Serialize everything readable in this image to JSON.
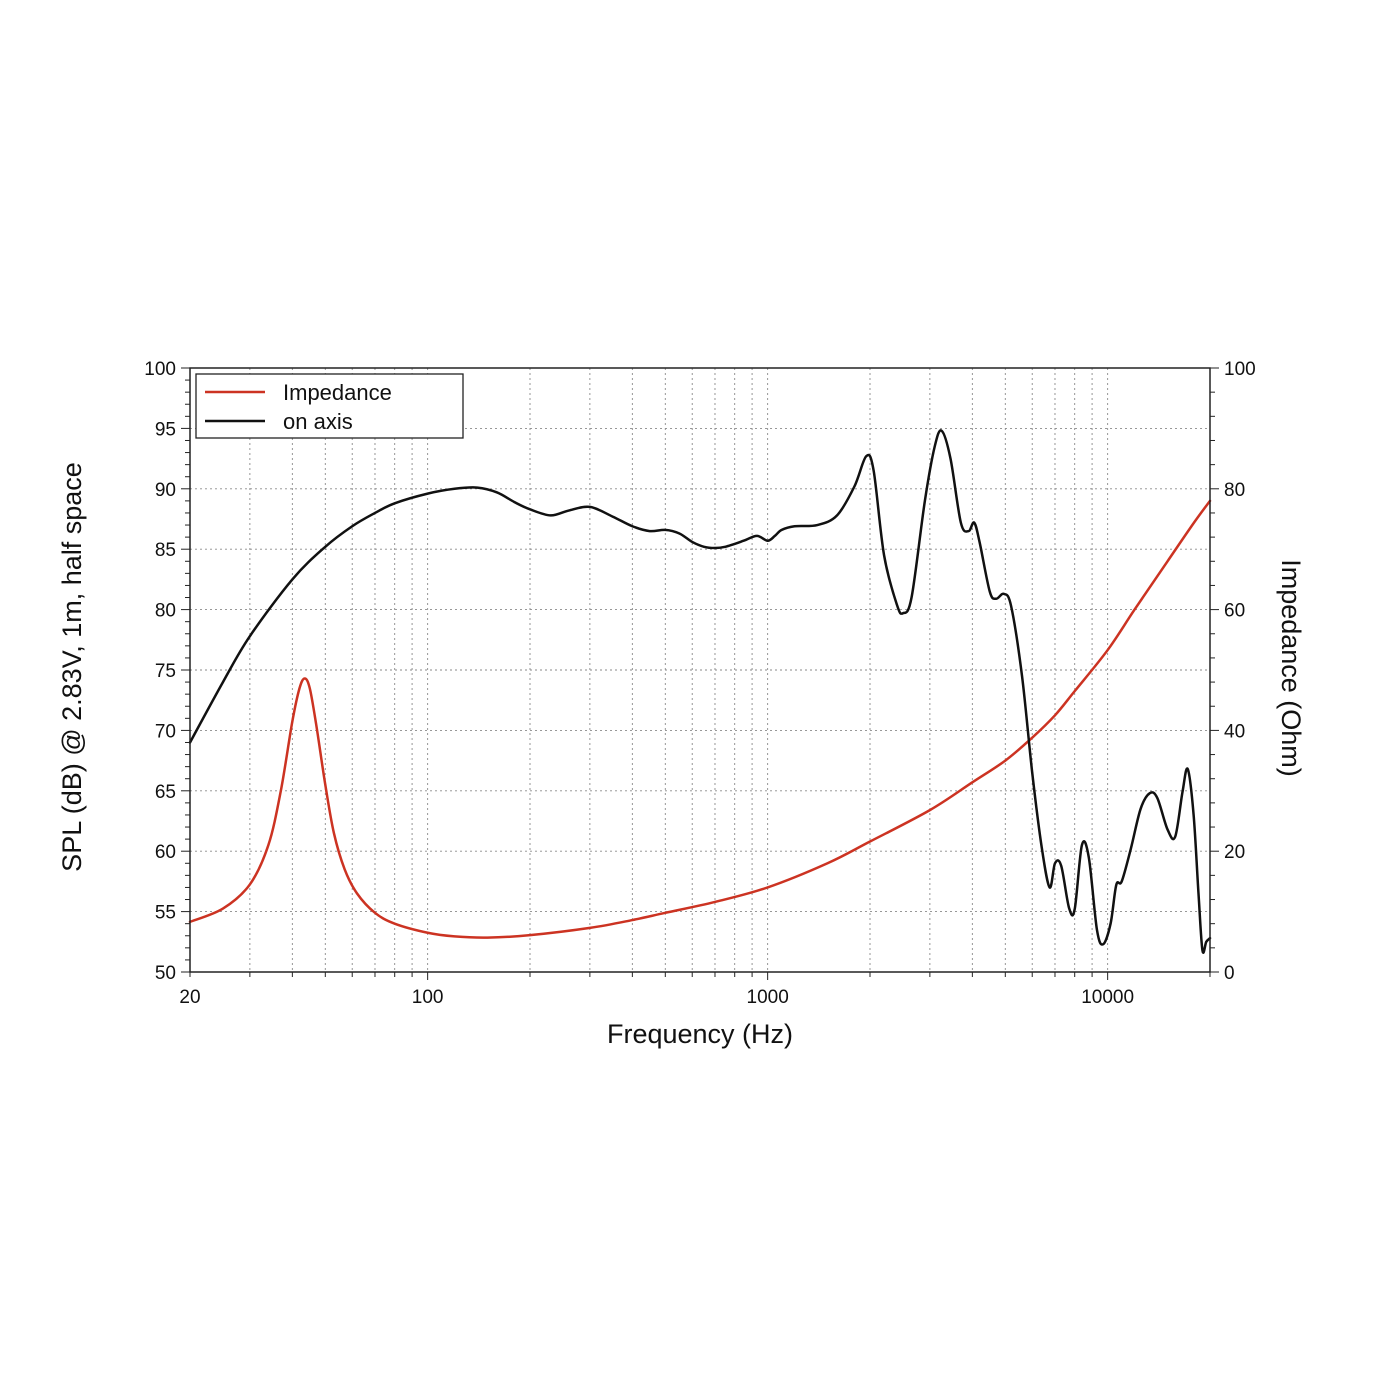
{
  "chart_data": {
    "type": "line",
    "xlabel": "Frequency (Hz)",
    "ylabel": "SPL (dB) @ 2.83V, 1m, half space",
    "y2label": "Impedance (Ohm)",
    "x_scale": "log",
    "xlim": [
      20,
      20000
    ],
    "ylim": [
      50,
      100
    ],
    "y2lim": [
      0,
      100
    ],
    "grid": true,
    "legend_position": "top-left",
    "x_ticks": [
      {
        "value": 20,
        "label": "20"
      },
      {
        "value": 100,
        "label": "100"
      },
      {
        "value": 1000,
        "label": "1000"
      },
      {
        "value": 10000,
        "label": "10000"
      }
    ],
    "y_ticks": [
      {
        "value": 100,
        "label": "100"
      },
      {
        "value": 95,
        "label": "95"
      },
      {
        "value": 90,
        "label": "90"
      },
      {
        "value": 85,
        "label": "85"
      },
      {
        "value": 80,
        "label": "80"
      },
      {
        "value": 75,
        "label": "75"
      },
      {
        "value": 70,
        "label": "70"
      },
      {
        "value": 65,
        "label": "65"
      },
      {
        "value": 60,
        "label": "60"
      },
      {
        "value": 55,
        "label": "55"
      },
      {
        "value": 50,
        "label": "50"
      }
    ],
    "y2_ticks": [
      {
        "value": 100,
        "label": "100"
      },
      {
        "value": 80,
        "label": "80"
      },
      {
        "value": 60,
        "label": "60"
      },
      {
        "value": 40,
        "label": "40"
      },
      {
        "value": 20,
        "label": "20"
      },
      {
        "value": 0,
        "label": "0"
      }
    ],
    "series": [
      {
        "name": "Impedance",
        "axis": "right",
        "color": "#cc3322",
        "points": [
          [
            20,
            8.3
          ],
          [
            25,
            10.5
          ],
          [
            30,
            14.5
          ],
          [
            34,
            21
          ],
          [
            37,
            30
          ],
          [
            40,
            41.5
          ],
          [
            42,
            47
          ],
          [
            43.5,
            48.6
          ],
          [
            45,
            47
          ],
          [
            47,
            41
          ],
          [
            50,
            31
          ],
          [
            53,
            23
          ],
          [
            57,
            17
          ],
          [
            62,
            13
          ],
          [
            70,
            9.8
          ],
          [
            80,
            8
          ],
          [
            100,
            6.5
          ],
          [
            120,
            5.9
          ],
          [
            150,
            5.7
          ],
          [
            200,
            6.1
          ],
          [
            300,
            7.3
          ],
          [
            400,
            8.6
          ],
          [
            500,
            9.8
          ],
          [
            700,
            11.6
          ],
          [
            1000,
            14
          ],
          [
            1500,
            18
          ],
          [
            2000,
            21.6
          ],
          [
            3000,
            26.8
          ],
          [
            4000,
            31.4
          ],
          [
            5000,
            35
          ],
          [
            6000,
            38.8
          ],
          [
            7000,
            42.5
          ],
          [
            8000,
            46.5
          ],
          [
            10000,
            53.3
          ],
          [
            12000,
            60
          ],
          [
            15000,
            68
          ],
          [
            18000,
            74.5
          ],
          [
            20000,
            78
          ]
        ]
      },
      {
        "name": "on axis",
        "axis": "left",
        "color": "#111111",
        "points": [
          [
            20,
            69.0
          ],
          [
            25,
            74.0
          ],
          [
            30,
            77.8
          ],
          [
            40,
            82.5
          ],
          [
            50,
            85.2
          ],
          [
            60,
            86.9
          ],
          [
            70,
            88.0
          ],
          [
            80,
            88.8
          ],
          [
            100,
            89.6
          ],
          [
            120,
            90.0
          ],
          [
            140,
            90.1
          ],
          [
            160,
            89.7
          ],
          [
            180,
            88.9
          ],
          [
            200,
            88.3
          ],
          [
            230,
            87.8
          ],
          [
            260,
            88.2
          ],
          [
            300,
            88.5
          ],
          [
            350,
            87.7
          ],
          [
            400,
            86.9
          ],
          [
            450,
            86.5
          ],
          [
            500,
            86.6
          ],
          [
            550,
            86.3
          ],
          [
            600,
            85.6
          ],
          [
            650,
            85.2
          ],
          [
            700,
            85.1
          ],
          [
            750,
            85.2
          ],
          [
            850,
            85.7
          ],
          [
            930,
            86.1
          ],
          [
            1000,
            85.7
          ],
          [
            1050,
            86.1
          ],
          [
            1100,
            86.6
          ],
          [
            1200,
            86.9
          ],
          [
            1400,
            87.0
          ],
          [
            1600,
            87.8
          ],
          [
            1800,
            90.2
          ],
          [
            1950,
            92.7
          ],
          [
            2050,
            91.5
          ],
          [
            2200,
            84.5
          ],
          [
            2400,
            80.4
          ],
          [
            2500,
            79.7
          ],
          [
            2650,
            81.0
          ],
          [
            2900,
            89.0
          ],
          [
            3100,
            93.5
          ],
          [
            3250,
            94.8
          ],
          [
            3450,
            92.5
          ],
          [
            3700,
            87.2
          ],
          [
            3900,
            86.5
          ],
          [
            4050,
            87.2
          ],
          [
            4200,
            85.6
          ],
          [
            4500,
            81.5
          ],
          [
            4700,
            80.9
          ],
          [
            4950,
            81.3
          ],
          [
            5200,
            80.3
          ],
          [
            5600,
            74.5
          ],
          [
            6000,
            66.5
          ],
          [
            6400,
            60.3
          ],
          [
            6750,
            57.0
          ],
          [
            7000,
            59.0
          ],
          [
            7300,
            58.8
          ],
          [
            7700,
            55.3
          ],
          [
            8000,
            55.2
          ],
          [
            8400,
            60.5
          ],
          [
            8800,
            59.5
          ],
          [
            9300,
            53.5
          ],
          [
            9700,
            52.3
          ],
          [
            10200,
            54.0
          ],
          [
            10600,
            57.2
          ],
          [
            11000,
            57.5
          ],
          [
            11700,
            60.2
          ],
          [
            12500,
            63.5
          ],
          [
            13300,
            64.8
          ],
          [
            14000,
            64.4
          ],
          [
            15000,
            61.8
          ],
          [
            15800,
            61.2
          ],
          [
            16600,
            64.9
          ],
          [
            17200,
            66.8
          ],
          [
            17900,
            63.0
          ],
          [
            18500,
            56.5
          ],
          [
            19000,
            51.8
          ],
          [
            19500,
            52.5
          ],
          [
            20000,
            52.8
          ]
        ]
      }
    ]
  }
}
